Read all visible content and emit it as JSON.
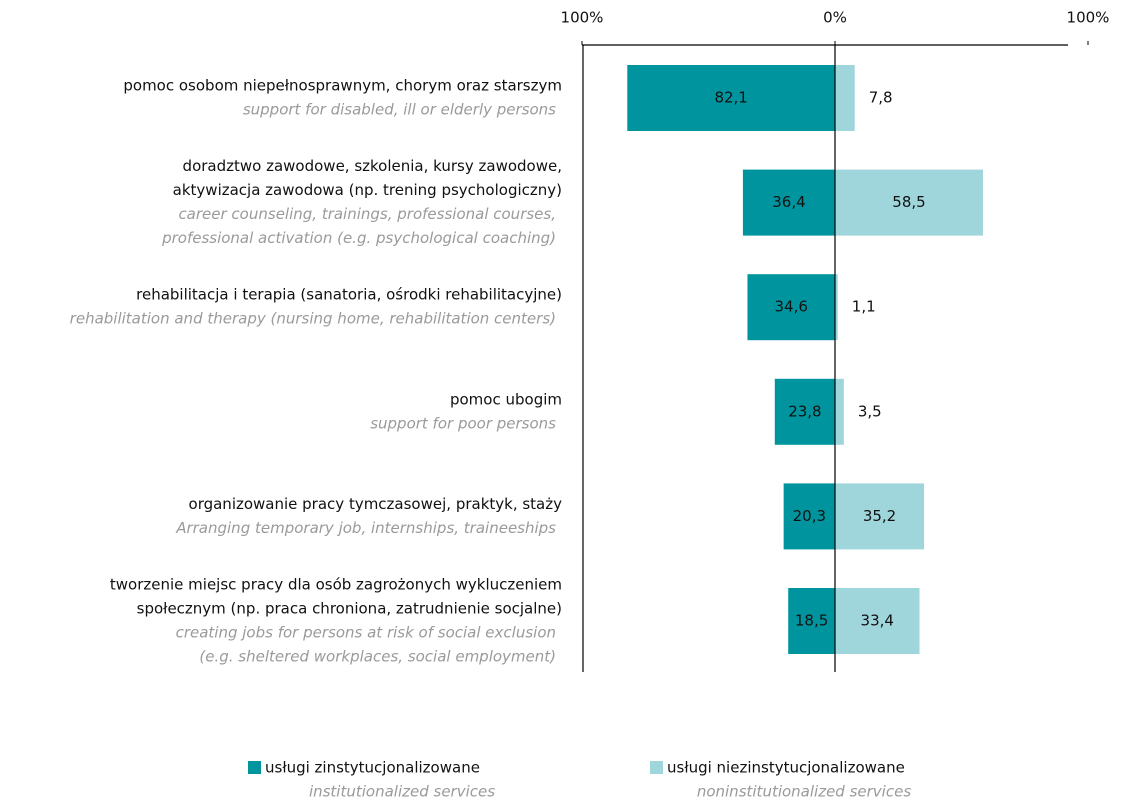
{
  "chart_data": {
    "type": "bar",
    "orientation": "horizontal",
    "diverging": true,
    "categories": [
      [
        "pomoc osobom niepełnosprawnym, chorym oraz starszym"
      ],
      [
        "doradztwo zawodowe, szkolenia, kursy zawodowe,",
        "aktywizacja zawodowa (np. trening psychologiczny)"
      ],
      [
        "rehabilitacja i terapia (sanatoria, ośrodki rehabilitacyjne)"
      ],
      [
        "pomoc ubogim"
      ],
      [
        "organizowanie pracy tymczasowej, praktyk, staży"
      ],
      [
        "tworzenie miejsc pracy dla osób zagrożonych wykluczeniem",
        "społecznym (np. praca chroniona, zatrudnienie socjalne)"
      ]
    ],
    "categories_en": [
      [
        "support for disabled, ill or elderly persons"
      ],
      [
        "career counseling, trainings, professional courses,",
        "professional activation (e.g. psychological coaching)"
      ],
      [
        "rehabilitation and therapy (nursing home, rehabilitation centers)"
      ],
      [
        "support for poor persons"
      ],
      [
        "Arranging temporary job, internships, traineeships"
      ],
      [
        "creating jobs for persons at risk of social exclusion",
        "(e.g. sheltered workplaces, social employment)"
      ]
    ],
    "series": [
      {
        "name": "usługi zinstytucjonalizowane",
        "name_en": "institutionalized services",
        "color": "#00959e",
        "values": [
          -82.1,
          -36.4,
          -34.6,
          -23.8,
          -20.3,
          -18.5
        ],
        "value_labels": [
          "82,1",
          "36,4",
          "34,6",
          "23,8",
          "20,3",
          "18,5"
        ]
      },
      {
        "name": "usługi niezinstytucjonalizowane",
        "name_en": "noninstitutionalized services",
        "color": "#9fd6dc",
        "values": [
          7.8,
          58.5,
          1.1,
          3.5,
          35.2,
          33.4
        ],
        "value_labels": [
          "7,8",
          "58,5",
          "1,1",
          "3,5",
          "35,2",
          "33,4"
        ]
      }
    ],
    "xlim": [
      -100,
      100
    ],
    "xticks": [
      {
        "value": -100,
        "label": "100%"
      },
      {
        "value": 0,
        "label": "0%"
      },
      {
        "value": 100,
        "label": "100%"
      }
    ]
  }
}
